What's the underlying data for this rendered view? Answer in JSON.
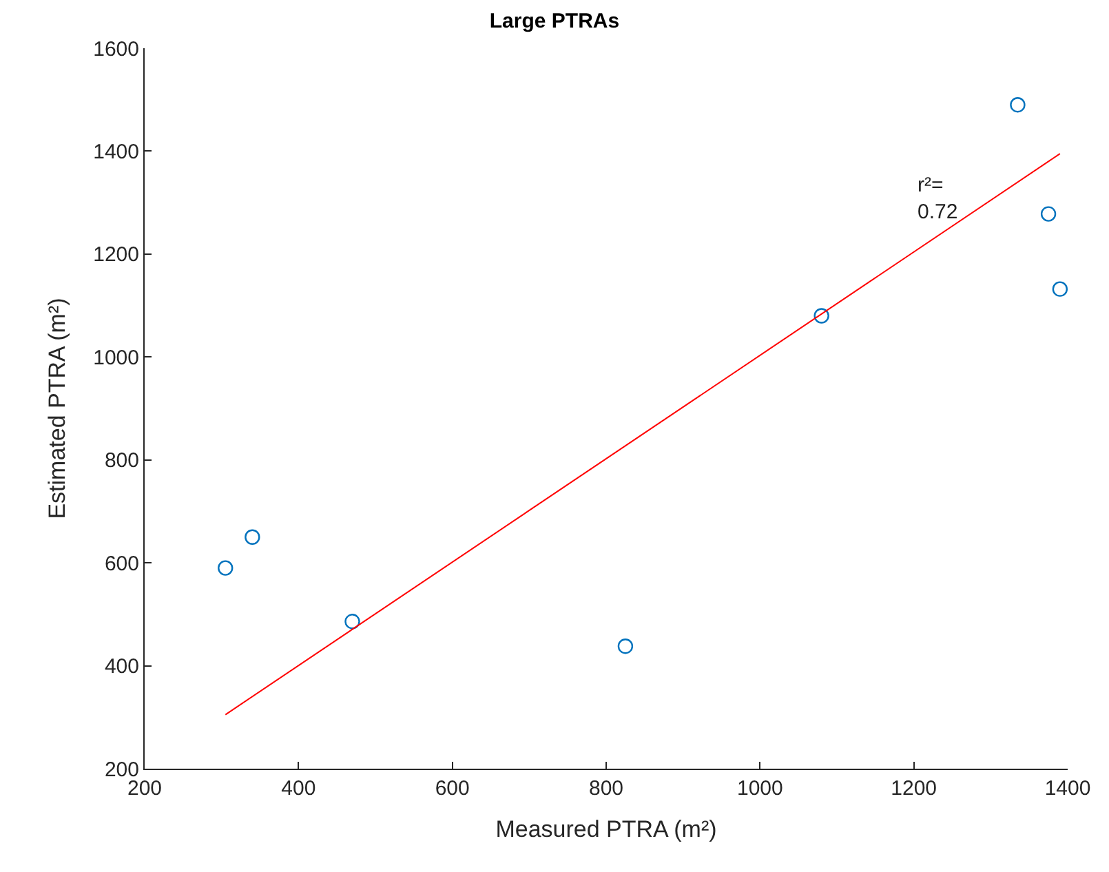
{
  "chart_data": {
    "type": "scatter",
    "title": "Large PTRAs",
    "xlabel": "Measured PTRA (m²)",
    "ylabel": "Estimated PTRA (m²)",
    "series": [
      {
        "color": "#0072bd",
        "marker": "circle",
        "x": [
          305,
          340,
          470,
          825,
          1080,
          1335,
          1375,
          1390
        ],
        "values": [
          590,
          650,
          486,
          438,
          1080,
          1490,
          1278,
          1132
        ]
      },
      {
        "type": "line",
        "color": "#ff0000",
        "marker": "none",
        "line_style": "solid",
        "x": [
          305,
          1390
        ],
        "values": [
          305,
          1395
        ]
      }
    ],
    "annotations": [
      "r²=\n0.72"
    ],
    "xlim": [
      200,
      1400
    ],
    "xticks": [
      200,
      400,
      600,
      800,
      1000,
      1200,
      1400
    ],
    "ylim": [
      200,
      1600
    ],
    "yticks": [
      200,
      400,
      600,
      800,
      1000,
      1200,
      1400,
      1600
    ]
  }
}
